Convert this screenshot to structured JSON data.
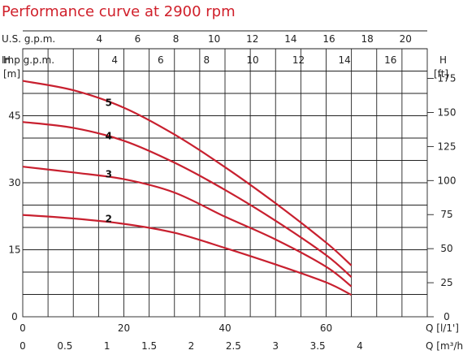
{
  "chart_data": {
    "type": "line",
    "title": "Performance curve at 2900 rpm",
    "top_axes": [
      {
        "label": "U.S. g.p.m.",
        "ticks": [
          "4",
          "6",
          "8",
          "10",
          "12",
          "14",
          "16",
          "18",
          "20"
        ],
        "gpm_per_lps": 15.85
      },
      {
        "label": "Imp g.p.m.",
        "ticks": [
          "4",
          "6",
          "8",
          "10",
          "12",
          "14",
          "16"
        ],
        "gpm_per_lps": 13.2
      }
    ],
    "x_primary": {
      "label": "Q [l/1']",
      "ticks": [
        "0",
        "20",
        "40",
        "60"
      ],
      "range": [
        0,
        80
      ]
    },
    "x_secondary": {
      "label": "Q [m³/h]",
      "ticks": [
        "0",
        "0.5",
        "1",
        "1.5",
        "2",
        "2.5",
        "3",
        "3.5",
        "4"
      ],
      "range": [
        0,
        4.8
      ]
    },
    "y_left": {
      "label": "H",
      "unit": "[m]",
      "ticks": [
        "0",
        "15",
        "30",
        "45"
      ],
      "range": [
        0,
        60
      ]
    },
    "y_right": {
      "label": "H",
      "unit": "[ft]",
      "ticks": [
        "0",
        "25",
        "50",
        "75",
        "100",
        "125",
        "150",
        "175"
      ],
      "range": [
        0,
        196.8
      ]
    },
    "grid": true,
    "series": [
      {
        "name": "5",
        "x": [
          0,
          10,
          20,
          30,
          40,
          50,
          60,
          65
        ],
        "y": [
          52.8,
          50.7,
          46.8,
          40.8,
          33.5,
          25.4,
          16.6,
          11.5
        ]
      },
      {
        "name": "4",
        "x": [
          0,
          10,
          20,
          30,
          40,
          50,
          60,
          65
        ],
        "y": [
          43.6,
          42.3,
          39.4,
          34.5,
          28.4,
          21.5,
          13.8,
          8.9
        ]
      },
      {
        "name": "3",
        "x": [
          0,
          10,
          20,
          30,
          40,
          50,
          60,
          65
        ],
        "y": [
          33.6,
          32.3,
          30.8,
          27.8,
          22.4,
          17.3,
          11.2,
          6.8
        ]
      },
      {
        "name": "2",
        "x": [
          0,
          10,
          20,
          30,
          40,
          50,
          60,
          65
        ],
        "y": [
          22.8,
          22.0,
          20.8,
          18.8,
          15.4,
          11.7,
          7.7,
          4.9
        ]
      }
    ],
    "curve_color": "#c8202f",
    "title_color": "#d01f2a"
  }
}
